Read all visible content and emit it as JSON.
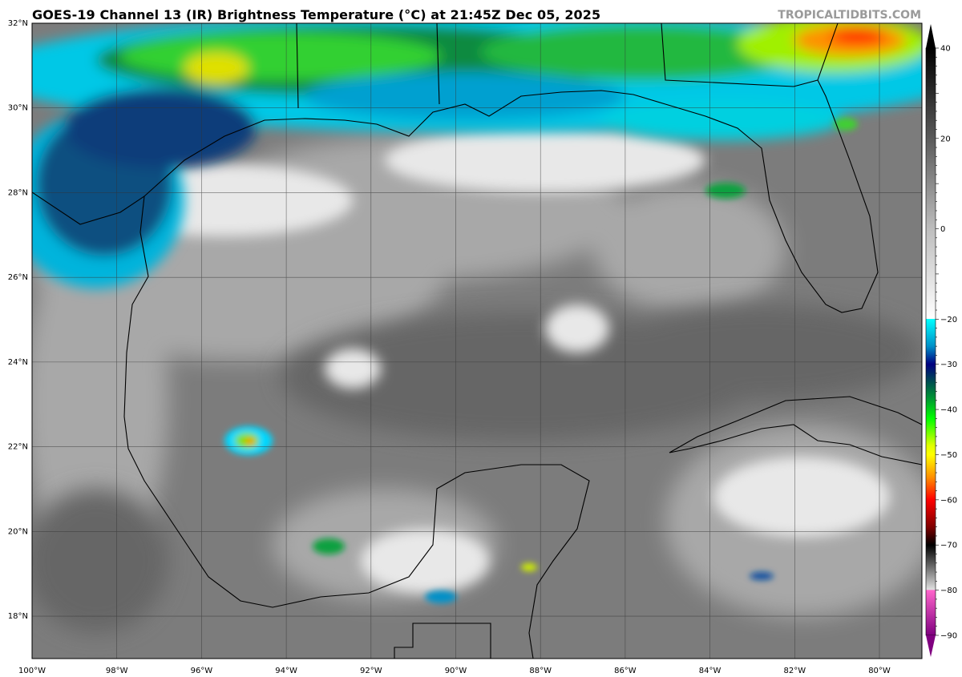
{
  "title": "GOES-19 Channel 13 (IR) Brightness Temperature (°C) at 21:45Z Dec 05, 2025",
  "watermark": "TROPICALTIDBITS.COM",
  "map": {
    "lon_range": [
      -100,
      -79.1
    ],
    "lat_range": [
      17,
      32
    ],
    "lat_labels": [
      "32°N",
      "30°N",
      "28°N",
      "26°N",
      "24°N",
      "22°N",
      "20°N",
      "18°N"
    ],
    "lon_labels": [
      "100°W",
      "98°W",
      "96°W",
      "94°W",
      "92°W",
      "90°W",
      "88°W",
      "86°W",
      "84°W",
      "82°W",
      "80°W"
    ]
  },
  "colorbar": {
    "range": [
      -90,
      40
    ],
    "tick_labels": [
      "40",
      "20",
      "0",
      "−20",
      "−30",
      "−40",
      "−50",
      "−60",
      "−70",
      "−80",
      "−90"
    ],
    "tick_values": [
      40,
      20,
      0,
      -20,
      -30,
      -40,
      -50,
      -60,
      -70,
      -80,
      -90
    ],
    "colors": [
      [
        40,
        "#000000"
      ],
      [
        20,
        "#5a5a5a"
      ],
      [
        0,
        "#bdbdbd"
      ],
      [
        -19.9,
        "#ffffff"
      ],
      [
        -20,
        "#00ffff"
      ],
      [
        -26,
        "#0090c8"
      ],
      [
        -30,
        "#000080"
      ],
      [
        -34,
        "#005050"
      ],
      [
        -38,
        "#00a030"
      ],
      [
        -42,
        "#00ff00"
      ],
      [
        -48,
        "#e0ff00"
      ],
      [
        -50,
        "#ffff00"
      ],
      [
        -55,
        "#ff9000"
      ],
      [
        -60,
        "#ff0000"
      ],
      [
        -66,
        "#800000"
      ],
      [
        -70,
        "#000000"
      ],
      [
        -75,
        "#707070"
      ],
      [
        -79.9,
        "#e0e0e0"
      ],
      [
        -80,
        "#ff66cc"
      ],
      [
        -90,
        "#800080"
      ]
    ]
  }
}
